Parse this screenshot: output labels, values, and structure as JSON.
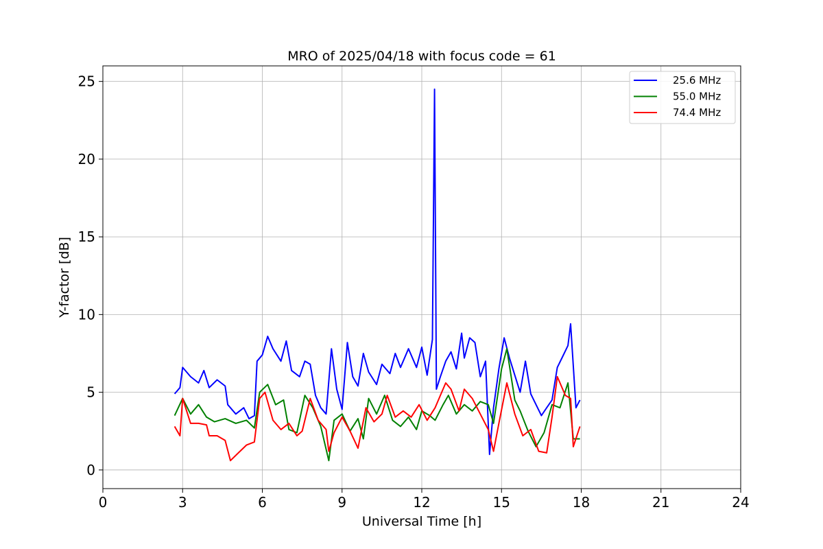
{
  "chart_data": {
    "type": "line",
    "title": "MRO of 2025/04/18 with focus code = 61",
    "xlabel": "Universal Time [h]",
    "ylabel": "Y-factor [dB]",
    "xlim": [
      0,
      24
    ],
    "ylim": [
      -1.2,
      26
    ],
    "xticks": [
      0,
      3,
      6,
      9,
      12,
      15,
      18,
      21,
      24
    ],
    "yticks": [
      0,
      5,
      10,
      15,
      20,
      25
    ],
    "xtick_labels": [
      "0",
      "3",
      "6",
      "9",
      "12",
      "15",
      "18",
      "21",
      "24"
    ],
    "ytick_labels": [
      "0",
      "5",
      "10",
      "15",
      "20",
      "25"
    ],
    "grid": true,
    "legend_position": "top-right",
    "series": [
      {
        "name": "25.6 MHz",
        "color": "#0000ff",
        "x": [
          2.7,
          2.9,
          3.0,
          3.3,
          3.6,
          3.8,
          4.0,
          4.3,
          4.6,
          4.7,
          5.0,
          5.3,
          5.5,
          5.7,
          5.8,
          6.0,
          6.2,
          6.4,
          6.7,
          6.9,
          7.1,
          7.4,
          7.6,
          7.8,
          8.0,
          8.2,
          8.4,
          8.6,
          8.8,
          9.0,
          9.2,
          9.4,
          9.6,
          9.8,
          10.0,
          10.3,
          10.5,
          10.8,
          11.0,
          11.2,
          11.5,
          11.8,
          12.0,
          12.2,
          12.4,
          12.48,
          12.55,
          12.7,
          12.9,
          13.1,
          13.3,
          13.5,
          13.6,
          13.8,
          14.0,
          14.2,
          14.4,
          14.55,
          14.7,
          14.9,
          15.1,
          15.3,
          15.5,
          15.7,
          15.9,
          16.1,
          16.3,
          16.5,
          16.7,
          16.9,
          17.1,
          17.3,
          17.5,
          17.6,
          17.8,
          17.95
        ],
        "values": [
          4.9,
          5.3,
          6.6,
          6.0,
          5.6,
          6.4,
          5.3,
          5.8,
          5.4,
          4.2,
          3.6,
          4.0,
          3.3,
          3.5,
          7.0,
          7.4,
          8.6,
          7.8,
          7.0,
          8.3,
          6.4,
          6.0,
          7.0,
          6.8,
          4.8,
          4.0,
          3.6,
          7.8,
          5.2,
          3.9,
          8.2,
          6.0,
          5.4,
          7.5,
          6.3,
          5.5,
          6.8,
          6.2,
          7.5,
          6.6,
          7.8,
          6.6,
          7.9,
          6.1,
          8.4,
          24.5,
          5.2,
          6.0,
          7.0,
          7.6,
          6.5,
          8.8,
          7.2,
          8.5,
          8.2,
          6.0,
          7.0,
          1.0,
          4.0,
          6.5,
          8.5,
          7.2,
          6.1,
          5.0,
          7.0,
          4.9,
          4.2,
          3.5,
          4.0,
          4.5,
          6.6,
          7.3,
          8.0,
          9.4,
          4.0,
          4.5
        ]
      },
      {
        "name": "55.0 MHz",
        "color": "#008000",
        "x": [
          2.7,
          3.0,
          3.3,
          3.6,
          3.9,
          4.2,
          4.6,
          5.0,
          5.4,
          5.7,
          5.9,
          6.2,
          6.5,
          6.8,
          7.0,
          7.3,
          7.6,
          7.9,
          8.2,
          8.5,
          8.7,
          9.0,
          9.3,
          9.6,
          9.8,
          10.0,
          10.3,
          10.6,
          10.9,
          11.2,
          11.5,
          11.8,
          12.0,
          12.3,
          12.5,
          12.8,
          13.0,
          13.3,
          13.6,
          13.9,
          14.2,
          14.5,
          14.7,
          15.0,
          15.2,
          15.5,
          15.7,
          16.0,
          16.3,
          16.6,
          16.9,
          17.2,
          17.5,
          17.7,
          17.95
        ],
        "values": [
          3.5,
          4.6,
          3.6,
          4.2,
          3.4,
          3.1,
          3.3,
          3.0,
          3.2,
          2.7,
          5.0,
          5.5,
          4.2,
          4.5,
          2.6,
          2.4,
          4.8,
          4.0,
          2.8,
          0.6,
          3.2,
          3.6,
          2.5,
          3.3,
          2.0,
          4.6,
          3.6,
          4.8,
          3.2,
          2.8,
          3.4,
          2.6,
          3.8,
          3.5,
          3.2,
          4.2,
          4.8,
          3.6,
          4.2,
          3.8,
          4.4,
          4.2,
          3.0,
          6.5,
          7.8,
          4.5,
          3.8,
          2.5,
          1.5,
          2.4,
          4.2,
          4.0,
          5.6,
          2.0,
          2.0
        ]
      },
      {
        "name": "74.4 MHz",
        "color": "#ff0000",
        "x": [
          2.7,
          2.9,
          3.0,
          3.3,
          3.6,
          3.9,
          4.0,
          4.3,
          4.6,
          4.8,
          5.1,
          5.4,
          5.7,
          5.9,
          6.1,
          6.4,
          6.7,
          7.0,
          7.3,
          7.5,
          7.8,
          8.1,
          8.4,
          8.5,
          8.7,
          9.0,
          9.3,
          9.6,
          9.9,
          10.2,
          10.5,
          10.7,
          11.0,
          11.3,
          11.6,
          11.9,
          12.2,
          12.5,
          12.7,
          12.9,
          13.1,
          13.4,
          13.6,
          13.9,
          14.2,
          14.5,
          14.7,
          14.9,
          15.2,
          15.5,
          15.8,
          16.1,
          16.4,
          16.7,
          16.9,
          17.1,
          17.4,
          17.6,
          17.7,
          17.95
        ],
        "values": [
          2.8,
          2.2,
          4.6,
          3.0,
          3.0,
          2.9,
          2.2,
          2.2,
          1.9,
          0.6,
          1.1,
          1.6,
          1.8,
          4.6,
          5.0,
          3.2,
          2.6,
          3.0,
          2.2,
          2.5,
          4.6,
          3.2,
          2.6,
          1.2,
          2.4,
          3.4,
          2.5,
          1.4,
          4.0,
          3.1,
          3.6,
          4.8,
          3.4,
          3.8,
          3.4,
          4.2,
          3.2,
          4.0,
          4.8,
          5.6,
          5.2,
          3.8,
          5.2,
          4.6,
          3.6,
          2.6,
          1.2,
          3.0,
          5.6,
          3.6,
          2.2,
          2.6,
          1.2,
          1.1,
          3.4,
          6.0,
          4.8,
          4.6,
          1.5,
          2.8
        ]
      }
    ]
  }
}
